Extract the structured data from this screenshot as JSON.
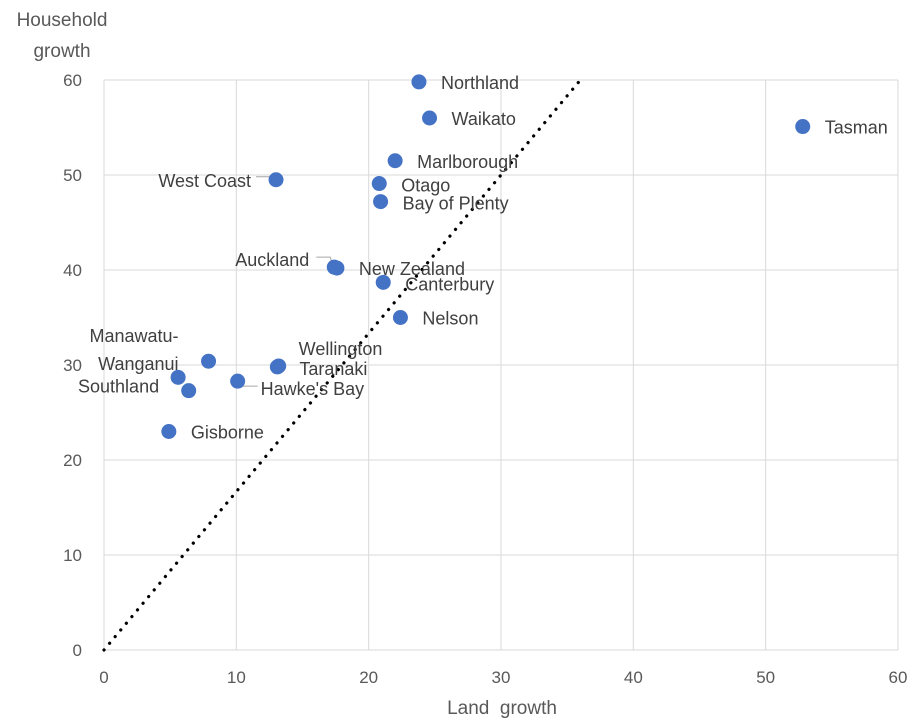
{
  "chart_data": {
    "type": "scatter",
    "xlabel": "Land  growth",
    "ylabel": [
      "Household",
      "growth"
    ],
    "xlim": [
      0,
      60
    ],
    "ylim": [
      0,
      60
    ],
    "xticks": [
      0,
      10,
      20,
      30,
      40,
      50,
      60
    ],
    "yticks": [
      0,
      10,
      20,
      30,
      40,
      50,
      60
    ],
    "grid": true,
    "point_color": "#4472c4",
    "points": [
      {
        "name": "Northland",
        "x": 23.8,
        "y": 59.8
      },
      {
        "name": "Waikato",
        "x": 24.6,
        "y": 56.0
      },
      {
        "name": "Tasman",
        "x": 52.8,
        "y": 55.1
      },
      {
        "name": "Marlborough",
        "x": 22.0,
        "y": 51.5
      },
      {
        "name": "West Coast",
        "x": 13.0,
        "y": 49.5
      },
      {
        "name": "Otago",
        "x": 20.8,
        "y": 49.1
      },
      {
        "name": "Bay of Plenty",
        "x": 20.9,
        "y": 47.2
      },
      {
        "name": "Auckland",
        "x": 17.4,
        "y": 40.3
      },
      {
        "name": "New Zealand",
        "x": 17.6,
        "y": 40.2
      },
      {
        "name": "Canterbury",
        "x": 21.1,
        "y": 38.7
      },
      {
        "name": "Nelson",
        "x": 22.4,
        "y": 35.0
      },
      {
        "name": "Manawatu-\nWanganui",
        "x": 7.9,
        "y": 30.4
      },
      {
        "name": "Wellington",
        "x": 13.2,
        "y": 29.9
      },
      {
        "name": "Taranaki",
        "x": 13.1,
        "y": 29.8
      },
      {
        "name": "Southland",
        "x": 5.6,
        "y": 28.7
      },
      {
        "name": "",
        "x": 6.4,
        "y": 27.3
      },
      {
        "name": "Hawke's Bay",
        "x": 10.1,
        "y": 28.3
      },
      {
        "name": "Gisborne",
        "x": 4.9,
        "y": 23.0
      }
    ],
    "reference_line": {
      "style": "dotted",
      "color": "#000000",
      "x": [
        0,
        36
      ],
      "y": [
        0,
        60
      ]
    }
  }
}
